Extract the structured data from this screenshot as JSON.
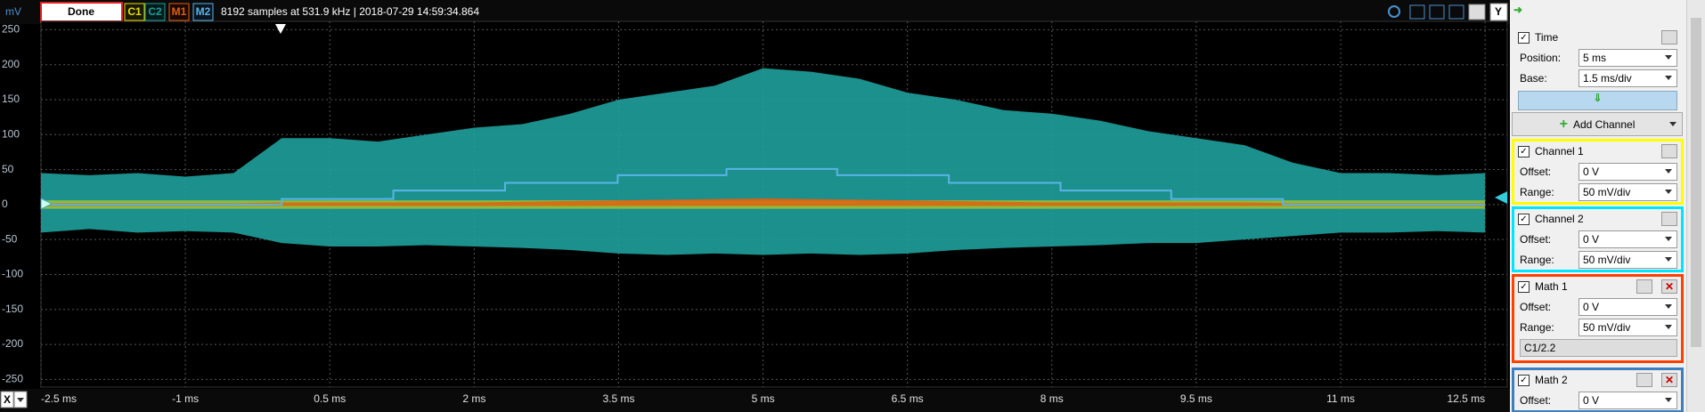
{
  "toolbar": {
    "status": "Done",
    "info": "8192 samples at 531.9 kHz | 2018-07-29 14:59:34.864",
    "y_button": "Y",
    "x_button": "X"
  },
  "chart_data": {
    "type": "scope",
    "y_unit": "mV",
    "xlim": [
      -2.5,
      12.73
    ],
    "ylim": [
      -261,
      262
    ],
    "xticks": [
      {
        "value": -2.5,
        "label": "-2.5 ms"
      },
      {
        "value": -1,
        "label": "-1 ms"
      },
      {
        "value": 0.5,
        "label": "0.5 ms"
      },
      {
        "value": 2,
        "label": "2 ms"
      },
      {
        "value": 3.5,
        "label": "3.5 ms"
      },
      {
        "value": 5,
        "label": "5 ms"
      },
      {
        "value": 6.5,
        "label": "6.5 ms"
      },
      {
        "value": 8,
        "label": "8 ms"
      },
      {
        "value": 9.5,
        "label": "9.5 ms"
      },
      {
        "value": 11,
        "label": "11 ms"
      },
      {
        "value": 12.5,
        "label": "12.5 ms"
      }
    ],
    "yticks": [
      250,
      200,
      150,
      100,
      50,
      0,
      -50,
      -100,
      -150,
      -200,
      -250
    ],
    "grid": true,
    "x": [
      -2.5,
      -2,
      -1.5,
      -1,
      -0.5,
      0,
      0.5,
      1,
      1.5,
      2,
      2.5,
      3,
      3.5,
      4,
      4.5,
      5,
      5.5,
      6,
      6.5,
      7,
      7.5,
      8,
      8.5,
      9,
      9.5,
      10,
      10.5,
      11,
      11.5,
      12,
      12.5
    ],
    "series": [
      {
        "name": "C1",
        "color": "#e8e000",
        "values": [
          6,
          6,
          6,
          6,
          6,
          6,
          6,
          6,
          6,
          6,
          6,
          6,
          6,
          6,
          6,
          6,
          6,
          6,
          6,
          6,
          6,
          6,
          6,
          6,
          6,
          6,
          6,
          6,
          6,
          6,
          6
        ],
        "lower": [
          -6,
          -6,
          -6,
          -6,
          -6,
          -6,
          -6,
          -6,
          -6,
          -6,
          -6,
          -6,
          -6,
          -6,
          -6,
          -6,
          -6,
          -6,
          -6,
          -6,
          -6,
          -6,
          -6,
          -6,
          -6,
          -6,
          -6,
          -6,
          -6,
          -6,
          -6
        ]
      },
      {
        "name": "C2",
        "color": "#1fa09b",
        "values": [
          45,
          42,
          45,
          40,
          45,
          95,
          95,
          90,
          100,
          110,
          115,
          130,
          150,
          160,
          170,
          195,
          190,
          180,
          160,
          150,
          135,
          130,
          120,
          105,
          95,
          85,
          60,
          45,
          45,
          42,
          45
        ],
        "lower": [
          -40,
          -35,
          -40,
          -38,
          -40,
          -55,
          -60,
          -60,
          -58,
          -60,
          -62,
          -65,
          -70,
          -72,
          -70,
          -72,
          -70,
          -72,
          -70,
          -65,
          -62,
          -60,
          -58,
          -55,
          -55,
          -50,
          -45,
          -40,
          -40,
          -38,
          -40
        ]
      },
      {
        "name": "M1",
        "color": "#e2600e",
        "values": [
          2,
          2,
          2,
          2,
          2,
          3,
          3,
          3,
          3,
          3,
          4,
          5,
          6,
          7,
          8,
          9,
          8,
          7,
          6,
          5,
          4,
          3,
          3,
          3,
          3,
          3,
          2,
          2,
          2,
          2,
          2
        ],
        "lower": [
          -2,
          -2,
          -2,
          -2,
          -2,
          -2,
          -2,
          -2,
          -2,
          -2,
          -2,
          -2,
          -2,
          -2,
          -2,
          -2,
          -2,
          -2,
          -2,
          -2,
          -2,
          -2,
          -2,
          -2,
          -2,
          -2,
          -2,
          -2,
          -2,
          -2,
          -2
        ]
      },
      {
        "name": "M2",
        "color": "#5ab4e6",
        "x": [
          -2.5,
          0,
          0,
          1.16,
          1.16,
          2.32,
          2.32,
          3.49,
          3.49,
          4.62,
          4.62,
          5.77,
          5.77,
          6.93,
          6.93,
          8.09,
          8.09,
          9.24,
          9.24,
          10.4,
          10.4,
          12.5
        ],
        "values": [
          0,
          0,
          8,
          8,
          20,
          20,
          31,
          31,
          42,
          42,
          51,
          51,
          42,
          42,
          31,
          31,
          20,
          20,
          8,
          8,
          0,
          0
        ]
      }
    ]
  },
  "panel": {
    "time": {
      "title": "Time",
      "position_label": "Position:",
      "position": "5 ms",
      "base_label": "Base:",
      "base": "1.5 ms/div"
    },
    "add_channel": "Add Channel",
    "channels": [
      {
        "title": "Channel 1",
        "offset_label": "Offset:",
        "offset": "0 V",
        "range_label": "Range:",
        "range": "50 mV/div"
      },
      {
        "title": "Channel 2",
        "offset_label": "Offset:",
        "offset": "0 V",
        "range_label": "Range:",
        "range": "50 mV/div"
      },
      {
        "title": "Math 1",
        "offset_label": "Offset:",
        "offset": "0 V",
        "range_label": "Range:",
        "range": "50 mV/div",
        "formula": "C1/2.2"
      },
      {
        "title": "Math 2",
        "offset_label": "Offset:",
        "offset": "0 V"
      }
    ]
  }
}
